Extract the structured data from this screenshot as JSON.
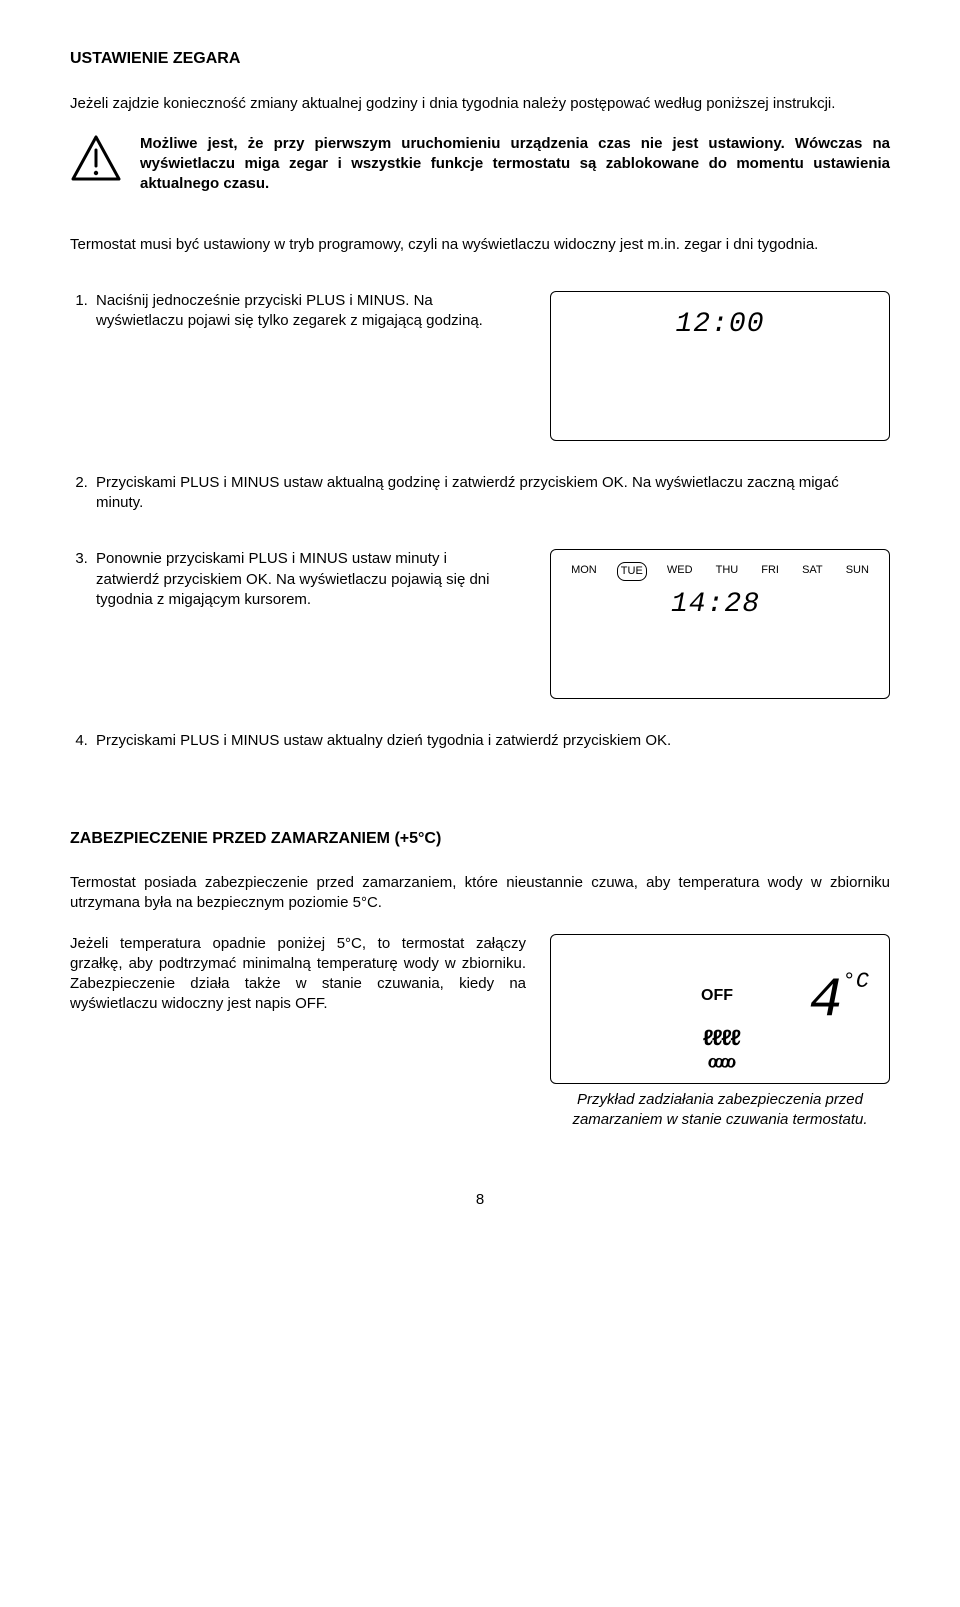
{
  "title1": "USTAWIENIE ZEGARA",
  "intro": "Jeżeli zajdzie konieczność zmiany aktualnej godziny i dnia tygodnia należy postępować według poniższej instrukcji.",
  "warning": "Możliwe jest, że przy pierwszym uruchomieniu urządzenia czas nie jest ustawiony. Wówczas na wyświetlaczu miga zegar i wszystkie funkcje termostatu są zablokowane do momentu ustawienia aktualnego czasu.",
  "note": "Termostat musi być ustawiony w tryb programowy, czyli na wyświetlaczu widoczny jest m.in. zegar i dni tygodnia.",
  "step1": "Naciśnij jednocześnie przyciski PLUS i MINUS. Na wyświetlaczu pojawi się tylko zegarek z migającą godziną.",
  "step2": "Przyciskami PLUS i MINUS ustaw aktualną godzinę i zatwierdź przyciskiem OK. Na wyświetlaczu zaczną migać minuty.",
  "step3": "Ponownie przyciskami PLUS i MINUS ustaw minuty i zatwierdź przyciskiem OK. Na wyświetlaczu pojawią się dni tygodnia z migającym kursorem.",
  "step4": "Przyciskami PLUS i MINUS ustaw aktualny dzień tygodnia i zatwierdź przyciskiem OK.",
  "lcd1": {
    "time": "12:00"
  },
  "lcd2": {
    "days": [
      "MON",
      "TUE",
      "WED",
      "THU",
      "FRI",
      "SAT",
      "SUN"
    ],
    "selected_day_index": 1,
    "time": "14:28"
  },
  "title2": "ZABEZPIECZENIE PRZED ZAMARZANIEM (+5°C)",
  "frost_intro": "Termostat posiada zabezpieczenie przed zamarzaniem, które nieustannie czuwa, aby temperatura wody w zbiorniku utrzymana była na bezpiecznym poziomie 5°C.",
  "frost_body": "Jeżeli temperatura opadnie poniżej 5°C, to termostat załączy grzałkę, aby podtrzymać minimalną temperaturę wody w zbiorniku. Zabezpieczenie działa także w stanie czuwania, kiedy na wyświetlaczu widoczny jest napis OFF.",
  "lcd3": {
    "off": "OFF",
    "temp": "4",
    "unit": "°C"
  },
  "caption": "Przykład zadziałania zabezpieczenia przed zamarzaniem w stanie czuwania termostatu.",
  "page": "8",
  "colors": {
    "text": "#000000",
    "background": "#ffffff",
    "lcd_border": "#000000"
  }
}
